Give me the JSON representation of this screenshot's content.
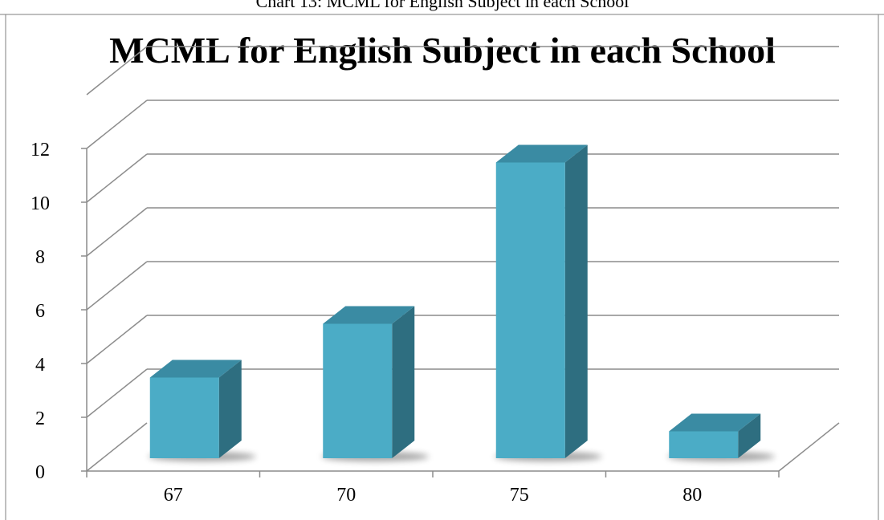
{
  "caption": "Chart 13: MCML for English Subject in each School",
  "chart_data": {
    "type": "bar",
    "title": "MCML for English Subject in each School",
    "categories": [
      "67",
      "70",
      "75",
      "80"
    ],
    "values": [
      3,
      5,
      11,
      1
    ],
    "ylim": [
      0,
      12
    ],
    "yticks": [
      0,
      2,
      4,
      6,
      8,
      10,
      12
    ],
    "xlabel": "",
    "ylabel": "",
    "grid": true,
    "legend": "none",
    "colors": {
      "bar_front": "#4BACC6",
      "bar_top": "#3A8BA3",
      "bar_side": "#2E6E80",
      "grid": "#8C8C8C"
    }
  }
}
